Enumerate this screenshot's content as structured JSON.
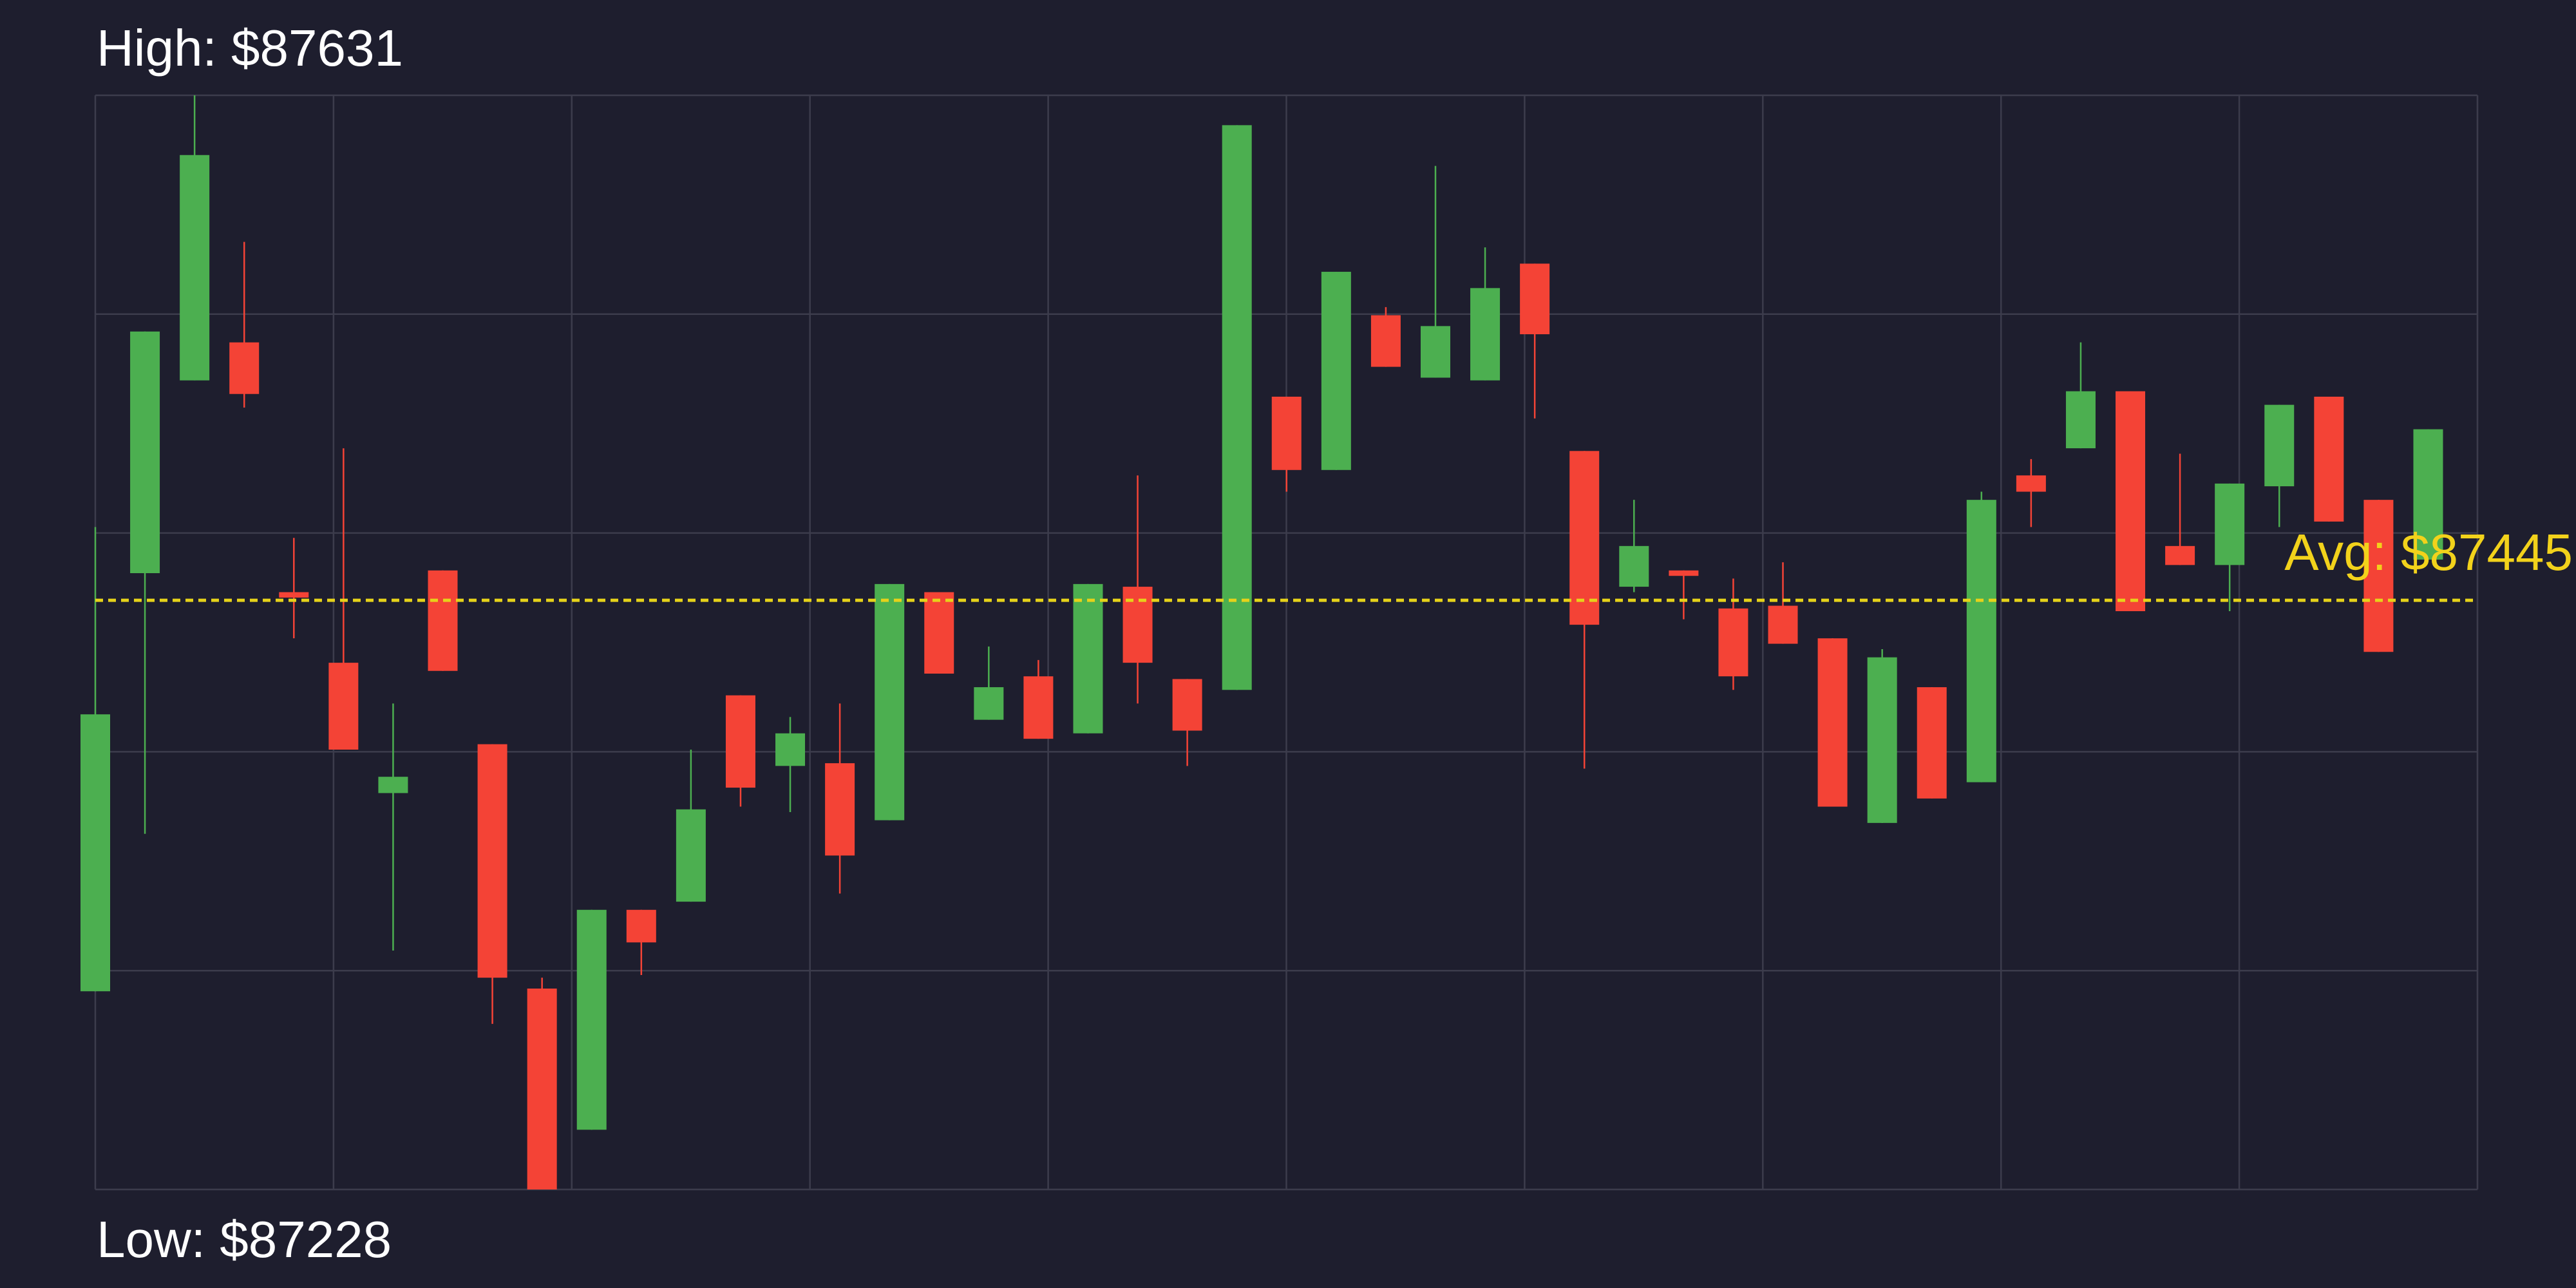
{
  "chart_data": {
    "type": "candlestick",
    "high_label": "High: $87631",
    "low_label": "Low: $87228",
    "average": {
      "value": 87445,
      "label": "Avg: $87445"
    },
    "ylim": [
      87228,
      87631
    ],
    "grid": true,
    "up_color": "#4caf50",
    "down_color": "#f44336",
    "average_color": "#e6d21a",
    "open": [
      87301,
      87455,
      87526,
      87540,
      87448,
      87422,
      87374,
      87456,
      87392,
      87302,
      87250,
      87331,
      87334,
      87410,
      87384,
      87385,
      87364,
      87448,
      87401,
      87417,
      87396,
      87450,
      87416,
      87412,
      87520,
      87493,
      87550,
      87527,
      87526,
      87569,
      87500,
      87450,
      87456,
      87442,
      87443,
      87431,
      87363,
      87413,
      87378,
      87491,
      87501,
      87522,
      87465,
      87458,
      87487,
      87520,
      87482,
      87460
    ],
    "high": [
      87472,
      87544,
      87631,
      87577,
      87468,
      87501,
      87407,
      87456,
      87392,
      87306,
      87331,
      87331,
      87390,
      87410,
      87402,
      87407,
      87451,
      87448,
      87428,
      87423,
      87451,
      87491,
      87416,
      87620,
      87520,
      87566,
      87553,
      87605,
      87575,
      87569,
      87500,
      87482,
      87456,
      87453,
      87459,
      87431,
      87427,
      87413,
      87485,
      87497,
      87540,
      87522,
      87499,
      87488,
      87517,
      87520,
      87482,
      87508
    ],
    "low": [
      87301,
      87359,
      87526,
      87516,
      87431,
      87390,
      87316,
      87419,
      87289,
      87228,
      87250,
      87307,
      87334,
      87369,
      87367,
      87337,
      87364,
      87418,
      87401,
      87394,
      87396,
      87407,
      87384,
      87412,
      87485,
      87493,
      87531,
      87527,
      87526,
      87512,
      87383,
      87448,
      87438,
      87412,
      87429,
      87369,
      87363,
      87372,
      87378,
      87472,
      87501,
      87441,
      87458,
      87441,
      87472,
      87474,
      87426,
      87460
    ],
    "close": [
      87403,
      87544,
      87609,
      87521,
      87446,
      87390,
      87380,
      87419,
      87306,
      87228,
      87331,
      87319,
      87368,
      87376,
      87396,
      87351,
      87451,
      87418,
      87413,
      87394,
      87451,
      87422,
      87397,
      87620,
      87493,
      87566,
      87531,
      87546,
      87560,
      87543,
      87436,
      87465,
      87454,
      87417,
      87429,
      87369,
      87424,
      87372,
      87482,
      87485,
      87522,
      87441,
      87458,
      87488,
      87517,
      87474,
      87426,
      87508
    ]
  }
}
